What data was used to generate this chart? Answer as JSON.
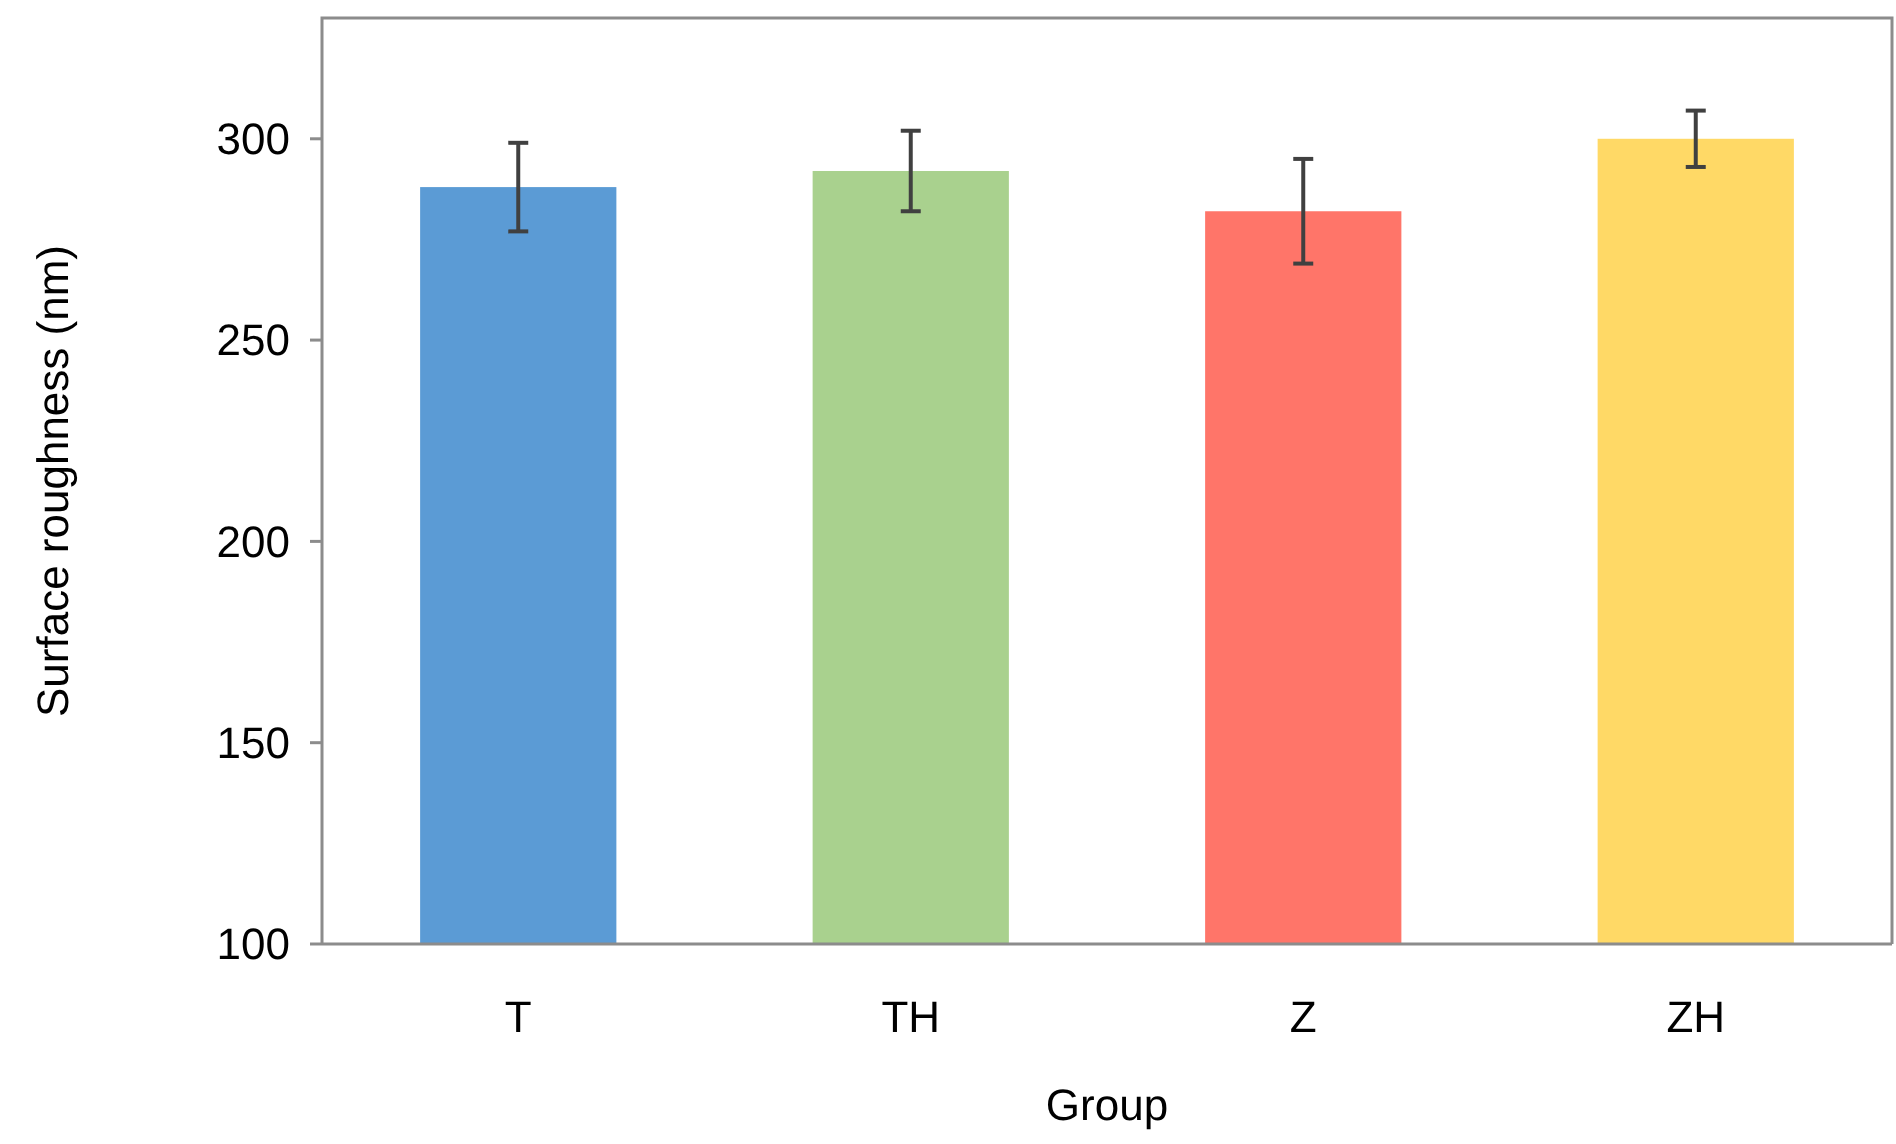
{
  "chart_data": {
    "type": "bar",
    "xlabel": "Group",
    "ylabel": "Surface roughness (nm)",
    "categories": [
      "T",
      "TH",
      "Z",
      "ZH"
    ],
    "values": [
      288,
      292,
      282,
      300
    ],
    "errors": [
      11,
      10,
      13,
      7
    ],
    "colors": [
      "#5b9bd5",
      "#a9d18e",
      "#ff7569",
      "#ffd966"
    ],
    "ylim": [
      100,
      330
    ],
    "yticks": [
      100,
      150,
      200,
      250,
      300
    ],
    "grid": false
  }
}
